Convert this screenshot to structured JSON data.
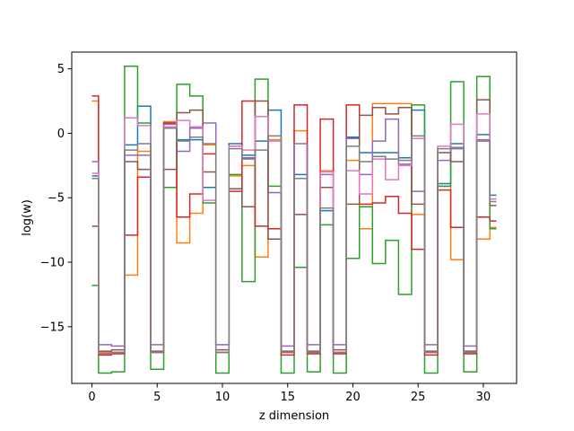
{
  "chart_data": {
    "type": "line",
    "drawstyle": "steps-mid",
    "xlabel": "z dimension",
    "ylabel": "log(w)",
    "xlim": [
      -1.55,
      32.55
    ],
    "ylim": [
      -19.4,
      6.3
    ],
    "xticks": [
      0,
      5,
      10,
      15,
      20,
      25,
      30
    ],
    "yticks": [
      5,
      0,
      -5,
      -10,
      -15
    ],
    "grid": false,
    "legend": "none",
    "x": [
      0,
      1,
      2,
      3,
      4,
      5,
      6,
      7,
      8,
      9,
      10,
      11,
      12,
      13,
      14,
      15,
      16,
      17,
      18,
      19,
      20,
      21,
      22,
      23,
      24,
      25,
      26,
      27,
      28,
      29,
      30,
      31
    ],
    "series": [
      {
        "color": "#1f77b4",
        "values": [
          -3.3,
          -17.0,
          -17.0,
          -0.9,
          2.1,
          -17.0,
          0.8,
          -0.5,
          -0.5,
          -4.2,
          -17.0,
          -0.8,
          -1.7,
          -0.6,
          1.8,
          -17.0,
          -3.2,
          -17.0,
          -6.0,
          -17.0,
          -0.3,
          -1.5,
          -1.5,
          -1.5,
          -1.9,
          1.8,
          -17.0,
          -3.9,
          -0.8,
          -17.0,
          -0.1,
          -4.8
        ]
      },
      {
        "color": "#ff7f0e",
        "values": [
          2.5,
          -17.0,
          -17.0,
          -11.0,
          -1.4,
          -17.0,
          0.9,
          -8.5,
          -6.2,
          -0.9,
          -17.0,
          -3.3,
          -2.5,
          -9.6,
          -0.5,
          -17.0,
          0.2,
          -17.0,
          -2.9,
          -17.0,
          -2.1,
          -7.4,
          2.3,
          2.3,
          2.3,
          -6.3,
          -17.0,
          -4.1,
          -9.8,
          -17.0,
          -8.2,
          -7.3
        ]
      },
      {
        "color": "#2ca02c",
        "values": [
          -11.8,
          -18.6,
          -18.5,
          5.2,
          0.8,
          -18.3,
          -4.2,
          3.8,
          2.9,
          -5.4,
          -18.6,
          -3.2,
          -11.5,
          4.2,
          -4.1,
          -18.6,
          -10.4,
          -18.5,
          -7.1,
          -18.6,
          -9.7,
          -5.7,
          -10.1,
          -8.3,
          -12.5,
          2.2,
          -18.6,
          -4.1,
          4.0,
          -18.5,
          4.4,
          -7.4
        ]
      },
      {
        "color": "#d62728",
        "values": [
          2.9,
          -17.2,
          -17.1,
          -7.9,
          -3.4,
          -17.0,
          0.8,
          -6.5,
          -4.7,
          -1.6,
          -17.0,
          -4.5,
          2.5,
          -7.2,
          -7.4,
          -17.2,
          2.2,
          -17.1,
          1.1,
          -17.1,
          2.2,
          -5.5,
          -5.4,
          -4.9,
          -6.2,
          -9.0,
          -17.2,
          -4.4,
          -7.3,
          -17.1,
          -6.5,
          -6.8
        ]
      },
      {
        "color": "#9467bd",
        "values": [
          -2.2,
          -16.4,
          -16.5,
          -1.7,
          -1.7,
          -16.4,
          0.7,
          -1.4,
          0.4,
          0.8,
          -16.4,
          -1.0,
          -1.9,
          1.3,
          -4.6,
          -16.5,
          -0.8,
          -16.4,
          -3.2,
          -16.4,
          -0.4,
          -3.2,
          -0.6,
          1.1,
          -2.4,
          -4.5,
          -16.4,
          -2.1,
          -1.2,
          -16.5,
          -0.5,
          -5.1
        ]
      },
      {
        "color": "#8c564b",
        "values": [
          -7.2,
          -16.9,
          -16.8,
          -2.2,
          -2.8,
          -16.9,
          -2.8,
          1.6,
          1.8,
          -3.0,
          -16.8,
          -4.3,
          -5.7,
          2.5,
          -8.2,
          -16.9,
          -6.3,
          -16.9,
          -4.2,
          -16.8,
          -5.5,
          1.4,
          2.0,
          1.5,
          2.0,
          -5.5,
          -16.9,
          -1.5,
          -2.2,
          -16.9,
          2.6,
          -5.6
        ]
      },
      {
        "color": "#e377c2",
        "values": [
          -3.1,
          -17.1,
          -17.0,
          1.2,
          0.6,
          -17.0,
          0.5,
          1.0,
          0.5,
          -5.2,
          -17.0,
          -1.0,
          -1.3,
          1.3,
          -0.6,
          -17.0,
          -3.5,
          -17.0,
          -3.0,
          -17.0,
          -2.9,
          -4.7,
          -2.0,
          -3.6,
          -2.5,
          -0.4,
          -17.0,
          -1.0,
          0.7,
          -17.0,
          1.5,
          -5.1
        ]
      },
      {
        "color": "#7f7f7f",
        "values": [
          -3.5,
          -17.1,
          -17.0,
          -1.3,
          -0.8,
          -17.0,
          0.4,
          -0.6,
          -0.3,
          -0.8,
          -17.0,
          -1.2,
          -2.0,
          -1.3,
          -0.2,
          -17.0,
          -3.5,
          -17.0,
          -5.8,
          -17.0,
          -1.0,
          -2.2,
          -1.8,
          -2.0,
          -2.1,
          -0.2,
          -17.0,
          -1.2,
          -1.1,
          -17.0,
          -0.6,
          -5.3
        ]
      }
    ]
  }
}
